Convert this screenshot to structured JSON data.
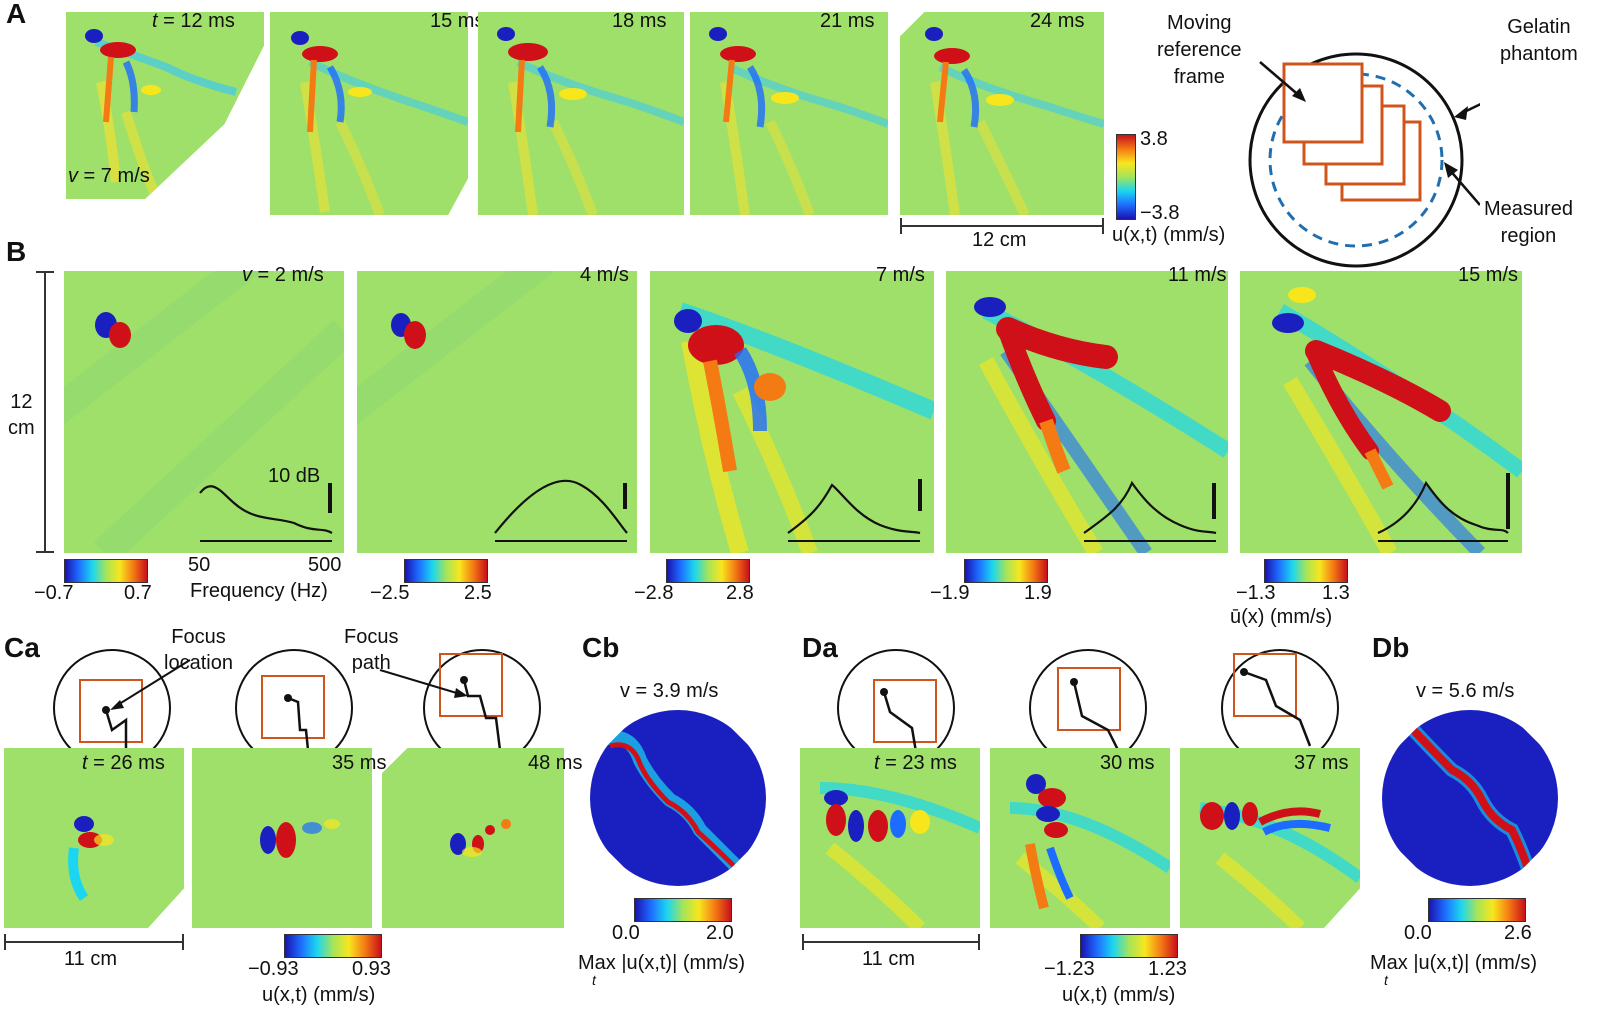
{
  "panels": {
    "A": {
      "letter": "A",
      "frame_times": [
        {
          "prefix": "t",
          "text": " = 12 ms"
        },
        {
          "prefix": "",
          "text": "15 ms"
        },
        {
          "prefix": "",
          "text": "18 ms"
        },
        {
          "prefix": "",
          "text": "21 ms"
        },
        {
          "prefix": "",
          "text": "24 ms"
        }
      ],
      "velocity_prefix": "v",
      "velocity_text": " = 7 m/s",
      "colorbar": {
        "max": "3.8",
        "min": "−3.8",
        "unit": "u(x,t) (mm/s)"
      },
      "scalebar": "12 cm",
      "schematic": {
        "moving_label": [
          "Moving",
          "reference",
          "frame"
        ],
        "gelatin_label": [
          "Gelatin",
          "phantom"
        ],
        "measured_label": [
          "Measured",
          "region"
        ]
      }
    },
    "B": {
      "letter": "B",
      "vertical_scale": [
        "12",
        "cm"
      ],
      "speeds": [
        {
          "prefix": "v",
          "text": " = 2 m/s"
        },
        {
          "prefix": "",
          "text": "4 m/s"
        },
        {
          "prefix": "",
          "text": "7 m/s"
        },
        {
          "prefix": "",
          "text": "11 m/s"
        },
        {
          "prefix": "",
          "text": "15 m/s"
        }
      ],
      "db_label": "10 dB",
      "freq_min": "50",
      "freq_max": "500",
      "freq_axis": "Frequency (Hz)",
      "colorbars": [
        {
          "min": "−0.7",
          "max": "0.7"
        },
        {
          "min": "−2.5",
          "max": "2.5"
        },
        {
          "min": "−2.8",
          "max": "2.8"
        },
        {
          "min": "−1.9",
          "max": "1.9"
        },
        {
          "min": "−1.3",
          "max": "1.3"
        }
      ],
      "unit": "ū(x) (mm/s)"
    },
    "C": {
      "letter_a": "Ca",
      "letter_b": "Cb",
      "focus_location": [
        "Focus",
        "location"
      ],
      "focus_path": [
        "Focus",
        "path"
      ],
      "times": [
        {
          "prefix": "t",
          "text": " = 26 ms"
        },
        {
          "prefix": "",
          "text": "35 ms"
        },
        {
          "prefix": "",
          "text": "48 ms"
        }
      ],
      "scalebar": "11 cm",
      "colorbar": {
        "min": "−0.93",
        "max": "0.93",
        "unit": "u(x,t) (mm/s)"
      },
      "max_velocity": "v = 3.9 m/s",
      "max_colorbar": {
        "min": "0.0",
        "max": "2.0",
        "unit": "Max |u(x,t)| (mm/s)",
        "sub": "t"
      }
    },
    "D": {
      "letter_a": "Da",
      "letter_b": "Db",
      "times": [
        {
          "prefix": "t",
          "text": " = 23 ms"
        },
        {
          "prefix": "",
          "text": "30 ms"
        },
        {
          "prefix": "",
          "text": "37 ms"
        }
      ],
      "scalebar": "11 cm",
      "colorbar": {
        "min": "−1.23",
        "max": "1.23",
        "unit": "u(x,t) (mm/s)"
      },
      "max_velocity": "v = 5.6 m/s",
      "max_colorbar": {
        "min": "0.0",
        "max": "2.6",
        "unit": "Max |u(x,t)| (mm/s)",
        "sub": "t"
      }
    }
  },
  "colors": {
    "background_field": "#9fe06a",
    "red": "#d01018",
    "blue": "#1a20c0",
    "yellow": "#f2e030",
    "cyan": "#40c8f0",
    "orange_frame": "#d0551d",
    "dashed_blue": "#1f6fb0"
  }
}
